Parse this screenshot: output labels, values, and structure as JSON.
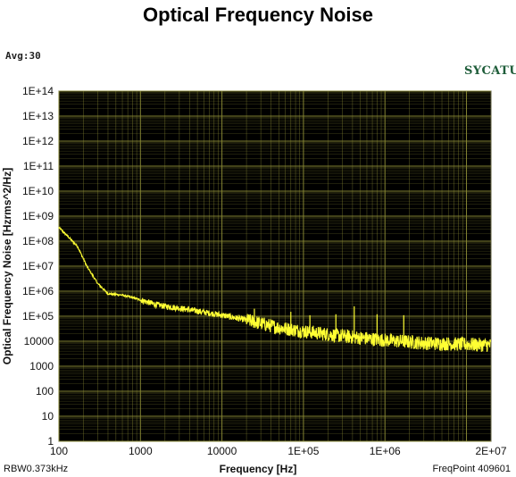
{
  "header": {
    "title": "Optical Frequency Noise",
    "avg": "Avg:30",
    "brand": "SYCATUS"
  },
  "footer": {
    "rbw": "RBW0.373kHz",
    "freq_point": "FreqPoint 409601"
  },
  "colors": {
    "plot_bg": "#000000",
    "grid": "#8a8a35",
    "trace": "#ffff33",
    "brand": "#1f5d3a"
  },
  "chart_data": {
    "type": "line",
    "title": "Optical Frequency Noise",
    "xlabel": "Frequency [Hz]",
    "ylabel": "Optical Frequency Noise [Hzrms^2/Hz]",
    "x_scale": "log",
    "y_scale": "log",
    "xlim": [
      100,
      20000000
    ],
    "ylim": [
      1,
      100000000000000
    ],
    "x_tick_labels": [
      {
        "value": 100,
        "label": "100"
      },
      {
        "value": 1000,
        "label": "1000"
      },
      {
        "value": 10000,
        "label": "10000"
      },
      {
        "value": 100000,
        "label": "1E+05"
      },
      {
        "value": 1000000,
        "label": "1E+06"
      },
      {
        "value": 20000000,
        "label": "2E+07"
      }
    ],
    "y_tick_labels": [
      {
        "value": 100000000000000,
        "label": "1E+14"
      },
      {
        "value": 10000000000000,
        "label": "1E+13"
      },
      {
        "value": 1000000000000,
        "label": "1E+12"
      },
      {
        "value": 100000000000,
        "label": "1E+11"
      },
      {
        "value": 10000000000,
        "label": "1E+10"
      },
      {
        "value": 1000000000,
        "label": "1E+09"
      },
      {
        "value": 100000000,
        "label": "1E+08"
      },
      {
        "value": 10000000,
        "label": "1E+07"
      },
      {
        "value": 1000000,
        "label": "1E+06"
      },
      {
        "value": 100000,
        "label": "1E+05"
      },
      {
        "value": 10000,
        "label": "10000"
      },
      {
        "value": 1000,
        "label": "1000"
      },
      {
        "value": 100,
        "label": "100"
      },
      {
        "value": 10,
        "label": "10"
      },
      {
        "value": 1,
        "label": "1"
      }
    ],
    "grid": true,
    "series": [
      {
        "color": "#ffff33",
        "points": [
          [
            100,
            350000000
          ],
          [
            130,
            150000000
          ],
          [
            170,
            60000000
          ],
          [
            220,
            10000000
          ],
          [
            300,
            2000000
          ],
          [
            400,
            800000
          ],
          [
            600,
            700000
          ],
          [
            800,
            550000
          ],
          [
            1000,
            450000
          ],
          [
            1500,
            300000
          ],
          [
            2000,
            250000
          ],
          [
            3000,
            210000
          ],
          [
            5000,
            160000
          ],
          [
            10000,
            110000
          ],
          [
            20000,
            70000
          ],
          [
            50000,
            35000
          ],
          [
            100000,
            25000
          ],
          [
            300000,
            16000
          ],
          [
            1000000,
            11000
          ],
          [
            3000000,
            8500
          ],
          [
            10000000,
            7500
          ],
          [
            20000000,
            7000
          ]
        ],
        "spikes": [
          [
            25000,
            200000
          ],
          [
            70000,
            150000
          ],
          [
            120000,
            110000
          ],
          [
            250000,
            120000
          ],
          [
            420000,
            250000
          ],
          [
            800000,
            120000
          ],
          [
            1700000,
            110000
          ]
        ]
      }
    ]
  }
}
